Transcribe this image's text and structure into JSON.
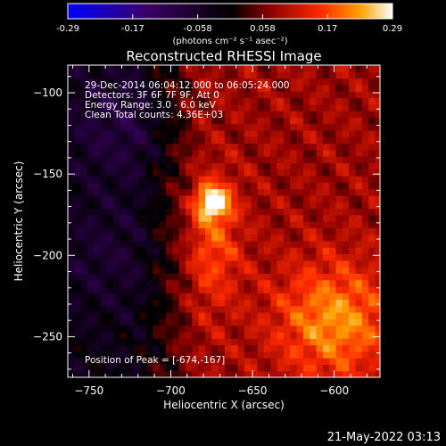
{
  "chart_data": {
    "type": "heatmap",
    "title": "Reconstructed RHESSI Image",
    "xlabel": "Heliocentric X (arcsec)",
    "ylabel": "Heliocentric Y (arcsec)",
    "xlim": [
      -763,
      -572
    ],
    "ylim": [
      -275,
      -83
    ],
    "x_ticks": [
      -750,
      -700,
      -650,
      -600
    ],
    "y_ticks": [
      -100,
      -150,
      -200,
      -250
    ],
    "colorbar": {
      "ticks": [
        "-0.29",
        "-0.17",
        "-0.058",
        "0.058",
        "0.17",
        "0.29"
      ],
      "range": [
        -0.29,
        0.29
      ],
      "units": "(photons cm⁻² s⁻¹ asec⁻²)"
    },
    "annotations": [
      "29-Dec-2014 06:04:12.000 to 06:05:24.000",
      "Detectors: 3F 6F 7F 9F, Att 0",
      "Energy Range: 3.0 - 6.0 keV",
      "Clean    Total counts: 4.36E+03"
    ],
    "peak_label": "Position of Peak = [-674,-167]",
    "peak": {
      "x": -674,
      "y": -167,
      "value": 0.29
    },
    "features": [
      {
        "kind": "negative-region",
        "x": -730,
        "y": -120,
        "value": -0.06
      },
      {
        "kind": "negative-region",
        "x": -740,
        "y": -200,
        "value": -0.04
      },
      {
        "kind": "bright-band",
        "x": -600,
        "y": -240,
        "value": 0.14
      }
    ]
  },
  "footer": {
    "timestamp": "21-May-2022 03:13"
  }
}
